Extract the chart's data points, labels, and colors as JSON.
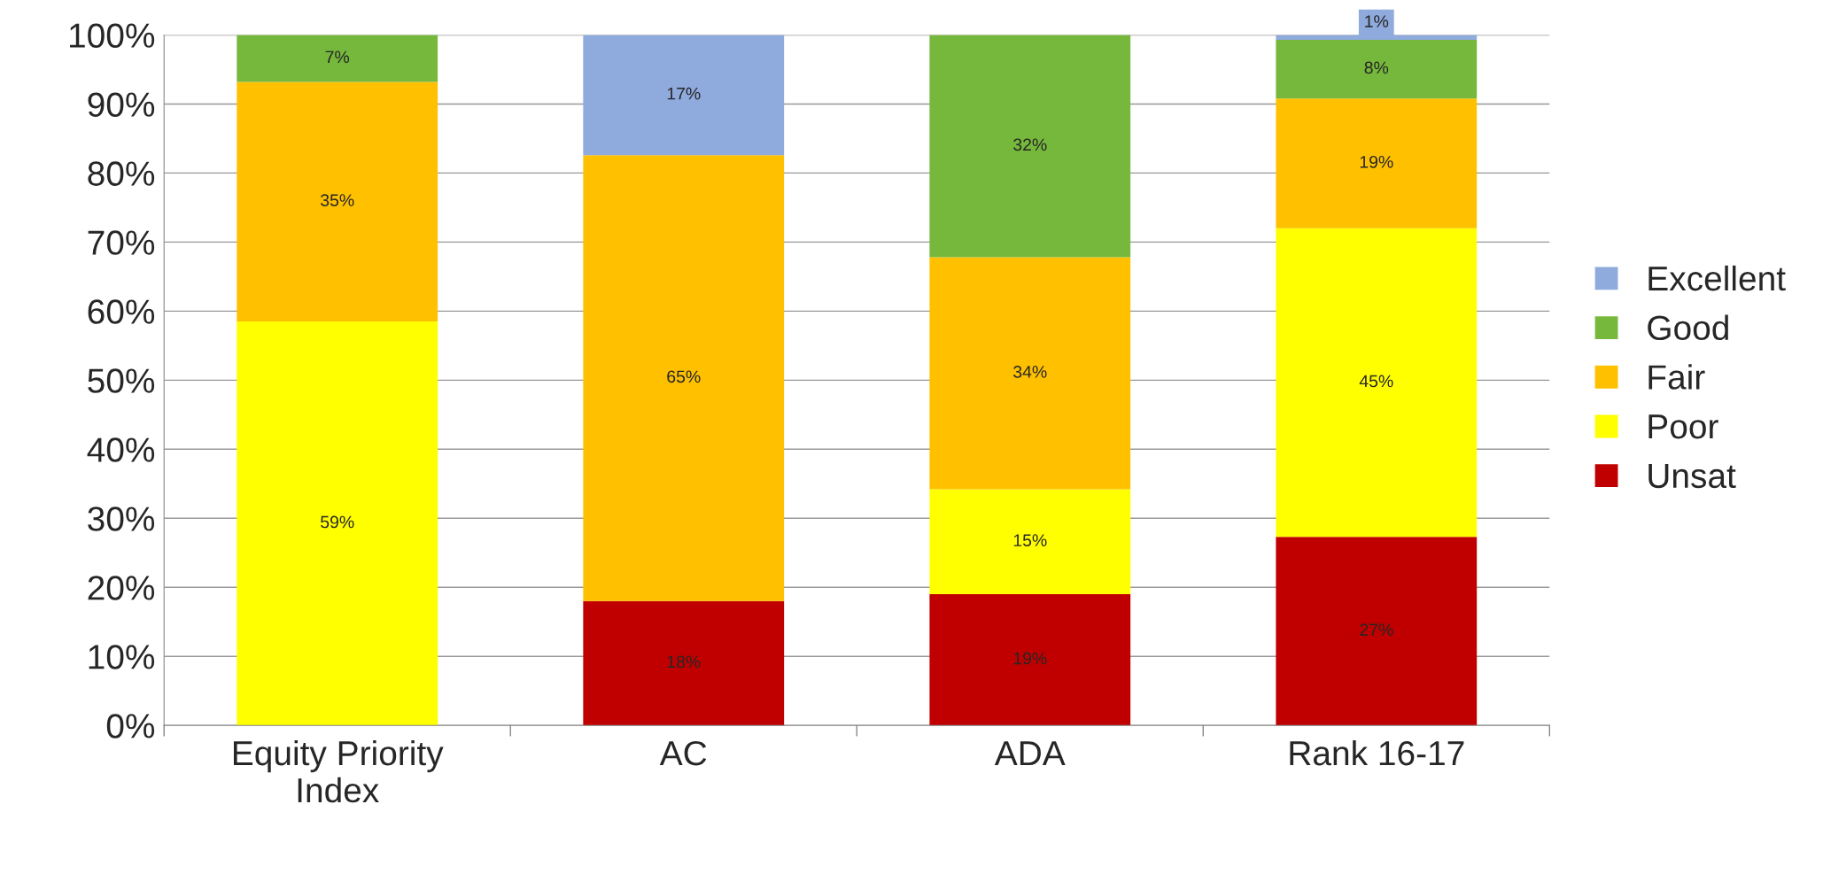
{
  "chart_data": {
    "type": "bar",
    "stacked": true,
    "categories": [
      "Equity Priority Index",
      "AC",
      "ADA",
      "Rank 16-17"
    ],
    "series": [
      {
        "name": "Unsat",
        "color": "#c00000",
        "values": [
          null,
          18,
          19,
          27.3
        ],
        "value_labels": [
          null,
          "18%",
          "19%",
          "27%"
        ]
      },
      {
        "name": "Poor",
        "color": "#ffff00",
        "values": [
          58.5,
          null,
          15.2,
          44.7
        ],
        "value_labels": [
          "59%",
          null,
          "15%",
          "45%"
        ]
      },
      {
        "name": "Fair",
        "color": "#ffc000",
        "values": [
          34.7,
          64.6,
          33.6,
          18.8
        ],
        "value_labels": [
          "35%",
          "65%",
          "34%",
          "19%"
        ]
      },
      {
        "name": "Good",
        "color": "#76b83c",
        "values": [
          6.8,
          null,
          32.2,
          8.5
        ],
        "value_labels": [
          "7%",
          null,
          "32%",
          "8%"
        ]
      },
      {
        "name": "Excellent",
        "color": "#8faadc",
        "values": [
          null,
          17.4,
          null,
          0.7
        ],
        "value_labels": [
          null,
          "17%",
          null,
          "1%"
        ]
      }
    ],
    "ylim": [
      0,
      100
    ],
    "yticks": [
      {
        "value": 0,
        "label": "0%"
      },
      {
        "value": 10,
        "label": "10%"
      },
      {
        "value": 20,
        "label": "20%"
      },
      {
        "value": 30,
        "label": "30%"
      },
      {
        "value": 40,
        "label": "40%"
      },
      {
        "value": 50,
        "label": "50%"
      },
      {
        "value": 60,
        "label": "60%"
      },
      {
        "value": 70,
        "label": "70%"
      },
      {
        "value": 80,
        "label": "80%"
      },
      {
        "value": 90,
        "label": "90%"
      },
      {
        "value": 100,
        "label": "100%"
      }
    ],
    "grid": "y",
    "legend": "right"
  }
}
